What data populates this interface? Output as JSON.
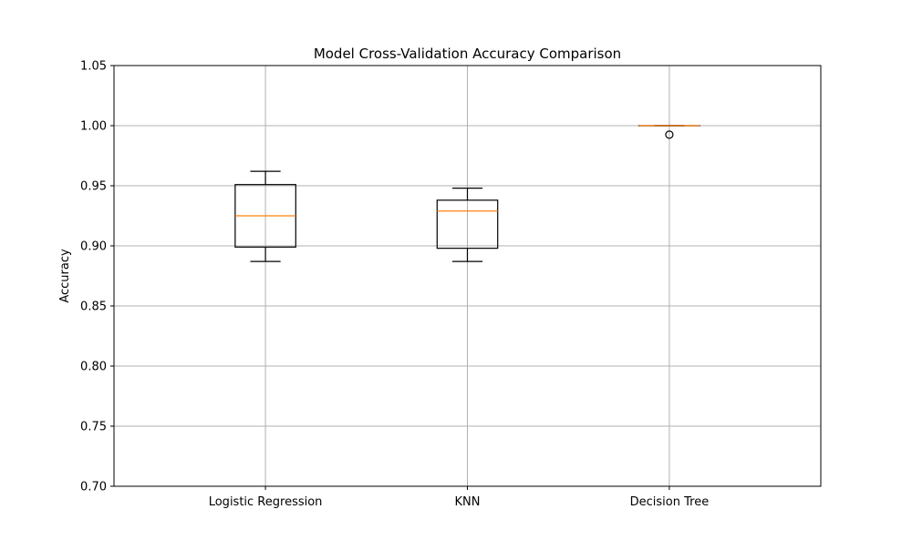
{
  "chart_data": {
    "type": "boxplot",
    "title": "Model Cross-Validation Accuracy Comparison",
    "xlabel": "",
    "ylabel": "Accuracy",
    "ylim": [
      0.7,
      1.05
    ],
    "yticks": [
      "0.70",
      "0.75",
      "0.80",
      "0.85",
      "0.90",
      "0.95",
      "1.00",
      "1.05"
    ],
    "grid": true,
    "categories": [
      "Logistic Regression",
      "KNN",
      "Decision Tree"
    ],
    "boxes": [
      {
        "whisker_low": 0.887,
        "q1": 0.899,
        "median": 0.925,
        "q3": 0.951,
        "whisker_high": 0.962,
        "outliers": []
      },
      {
        "whisker_low": 0.887,
        "q1": 0.898,
        "median": 0.929,
        "q3": 0.938,
        "whisker_high": 0.948,
        "outliers": []
      },
      {
        "whisker_low": 1.0,
        "q1": 1.0,
        "median": 1.0,
        "q3": 1.0,
        "whisker_high": 1.0,
        "outliers": [
          0.9925
        ]
      }
    ],
    "colors": {
      "box": "#000000",
      "median": "#ff7f0e",
      "grid": "#b0b0b0"
    }
  }
}
